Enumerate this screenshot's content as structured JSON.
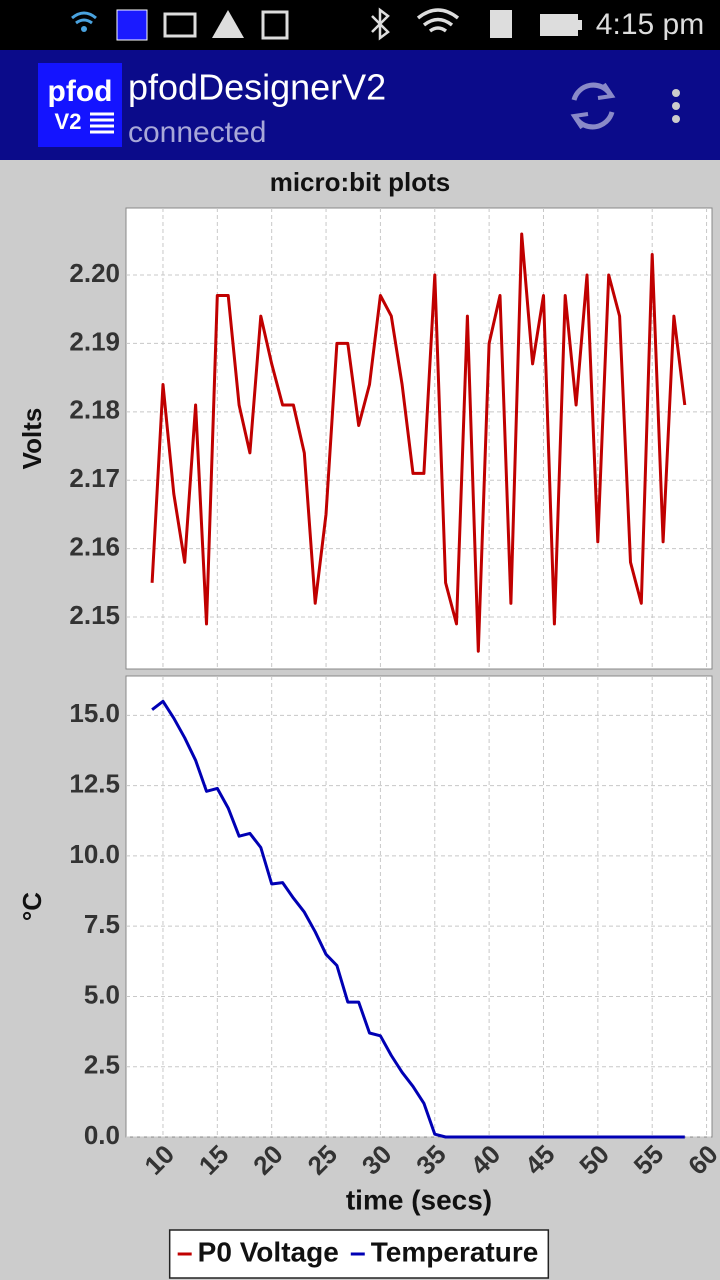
{
  "status_bar": {
    "time": "4:15 pm"
  },
  "app_bar": {
    "logo": {
      "line1": "pfod",
      "line2": "V2"
    },
    "title": "pfodDesignerV2",
    "subtitle": "connected"
  },
  "legend": "bottom",
  "chart_data": [
    {
      "type": "line",
      "title": "micro:bit plots",
      "ylabel": "Volts",
      "x": [
        9,
        10,
        11,
        12,
        13,
        14,
        15,
        16,
        17,
        18,
        19,
        20,
        21,
        22,
        23,
        24,
        25,
        26,
        27,
        28,
        29,
        30,
        31,
        32,
        33,
        34,
        35,
        36,
        37,
        38,
        39,
        40,
        41,
        42,
        43,
        44,
        45,
        46,
        47,
        48,
        49,
        50,
        51,
        52,
        53,
        54,
        55,
        56,
        57,
        58
      ],
      "series": [
        {
          "name": "P0 Voltage",
          "color": "#c00000",
          "values": [
            2.155,
            2.184,
            2.168,
            2.158,
            2.181,
            2.149,
            2.197,
            2.197,
            2.181,
            2.174,
            2.194,
            2.187,
            2.181,
            2.181,
            2.174,
            2.152,
            2.165,
            2.19,
            2.19,
            2.178,
            2.184,
            2.197,
            2.194,
            2.184,
            2.171,
            2.171,
            2.2,
            2.155,
            2.149,
            2.194,
            2.145,
            2.19,
            2.197,
            2.152,
            2.206,
            2.187,
            2.197,
            2.149,
            2.197,
            2.181,
            2.2,
            2.161,
            2.2,
            2.194,
            2.158,
            2.152,
            2.203,
            2.161,
            2.194,
            2.181
          ]
        }
      ],
      "xlim": [
        6.6,
        60.5
      ],
      "xticks": [
        10,
        15,
        20,
        25,
        30,
        35,
        40,
        45,
        50,
        55,
        60
      ],
      "ylim": [
        2.1424,
        2.2098
      ],
      "yticks": [
        2.15,
        2.16,
        2.17,
        2.18,
        2.19,
        {
          "value": 2.2,
          "label": "2.20"
        }
      ],
      "grid": true
    },
    {
      "type": "line",
      "xlabel": "time (secs)",
      "ylabel": "°C",
      "x": [
        9,
        10,
        11,
        12,
        13,
        14,
        15,
        16,
        17,
        18,
        19,
        20,
        21,
        22,
        23,
        24,
        25,
        26,
        27,
        28,
        29,
        30,
        31,
        32,
        33,
        34,
        35,
        36,
        37,
        38,
        39,
        40,
        41,
        42,
        43,
        44,
        45,
        46,
        47,
        48,
        49,
        50,
        51,
        52,
        53,
        54,
        55,
        56,
        57,
        58
      ],
      "series": [
        {
          "name": "Temperature",
          "color": "#0000b4",
          "values": [
            15.2,
            15.5,
            14.9,
            14.2,
            13.4,
            12.3,
            12.4,
            11.7,
            10.7,
            10.8,
            10.3,
            9.0,
            9.05,
            8.5,
            8.0,
            7.3,
            6.5,
            6.1,
            4.8,
            4.8,
            3.7,
            3.6,
            2.9,
            2.3,
            1.8,
            1.2,
            0.1,
            0,
            0,
            0,
            0,
            0,
            0,
            0,
            0,
            0,
            0,
            0,
            0,
            0,
            0,
            0,
            0,
            0,
            0,
            0,
            0,
            0,
            0,
            0
          ]
        }
      ],
      "xlim": [
        6.6,
        60.5
      ],
      "xticks": [
        10,
        15,
        20,
        25,
        30,
        35,
        40,
        45,
        50,
        55,
        60
      ],
      "ylim": [
        0,
        16.4
      ],
      "yticks": [
        {
          "value": 0,
          "label": "0.0"
        },
        2.5,
        {
          "value": 5,
          "label": "5.0"
        },
        7.5,
        {
          "value": 10,
          "label": "10.0"
        },
        12.5,
        {
          "value": 15,
          "label": "15.0"
        }
      ],
      "grid": true
    }
  ]
}
